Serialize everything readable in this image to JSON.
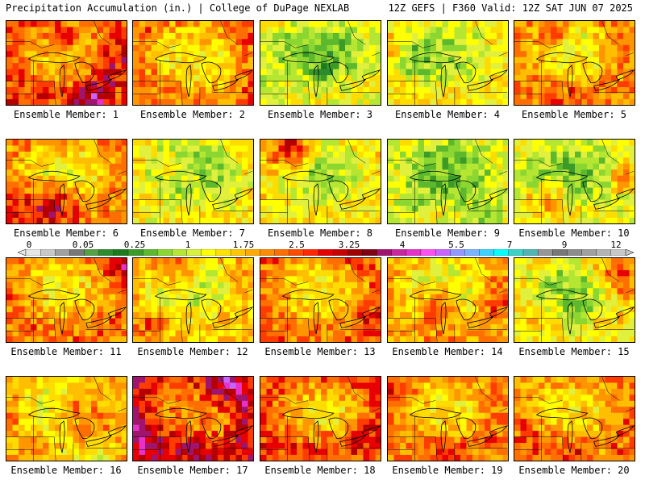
{
  "header": {
    "title": "Precipitation Accumulation (in.) | College of DuPage NEXLAB",
    "valid": "12Z GEFS | F360 Valid: 12Z SAT JUN 07 2025"
  },
  "panel_label_prefix": "Ensemble Member: ",
  "members": [
    {
      "label": "Ensemble Member: 1",
      "wet": 0.68
    },
    {
      "label": "Ensemble Member: 2",
      "wet": 0.62
    },
    {
      "label": "Ensemble Member: 3",
      "wet": 0.4
    },
    {
      "label": "Ensemble Member: 4",
      "wet": 0.45
    },
    {
      "label": "Ensemble Member: 5",
      "wet": 0.6
    },
    {
      "label": "Ensemble Member: 6",
      "wet": 0.6
    },
    {
      "label": "Ensemble Member: 7",
      "wet": 0.42
    },
    {
      "label": "Ensemble Member: 8",
      "wet": 0.45
    },
    {
      "label": "Ensemble Member: 9",
      "wet": 0.38
    },
    {
      "label": "Ensemble Member: 10",
      "wet": 0.4
    },
    {
      "label": "Ensemble Member: 11",
      "wet": 0.62
    },
    {
      "label": "Ensemble Member: 12",
      "wet": 0.52
    },
    {
      "label": "Ensemble Member: 13",
      "wet": 0.62
    },
    {
      "label": "Ensemble Member: 14",
      "wet": 0.55
    },
    {
      "label": "Ensemble Member: 15",
      "wet": 0.45
    },
    {
      "label": "Ensemble Member: 16",
      "wet": 0.55
    },
    {
      "label": "Ensemble Member: 17",
      "wet": 0.78
    },
    {
      "label": "Ensemble Member: 18",
      "wet": 0.68
    },
    {
      "label": "Ensemble Member: 19",
      "wet": 0.62
    },
    {
      "label": "Ensemble Member: 20",
      "wet": 0.62
    }
  ],
  "colorbar": {
    "tick_labels": [
      "0",
      "0.05",
      "0.25",
      "1",
      "1.75",
      "2.5",
      "3.25",
      "4",
      "5.5",
      "7",
      "9",
      "12"
    ],
    "colors": [
      "#e6e6e6",
      "#c8c8c8",
      "#a0a0a0",
      "#787878",
      "#55a045",
      "#2e8b2e",
      "#1e7a1e",
      "#3c9a28",
      "#5cb82c",
      "#8cd632",
      "#b4e632",
      "#d9f03c",
      "#ffff00",
      "#ffe100",
      "#ffc800",
      "#ffaa00",
      "#ff8c00",
      "#ff6e00",
      "#ff4b00",
      "#ff2800",
      "#e60000",
      "#c80000",
      "#a00000",
      "#820014",
      "#a0146e",
      "#c8289b",
      "#e632c8",
      "#ff50f0",
      "#c864ff",
      "#9696ff",
      "#78b4ff",
      "#3cd2ff",
      "#00ffff",
      "#3cd2c8",
      "#50b4b4",
      "#969696",
      "#787878",
      "#8c8c8c",
      "#a0a0a0",
      "#b4b4b4",
      "#c8c8c8"
    ]
  }
}
